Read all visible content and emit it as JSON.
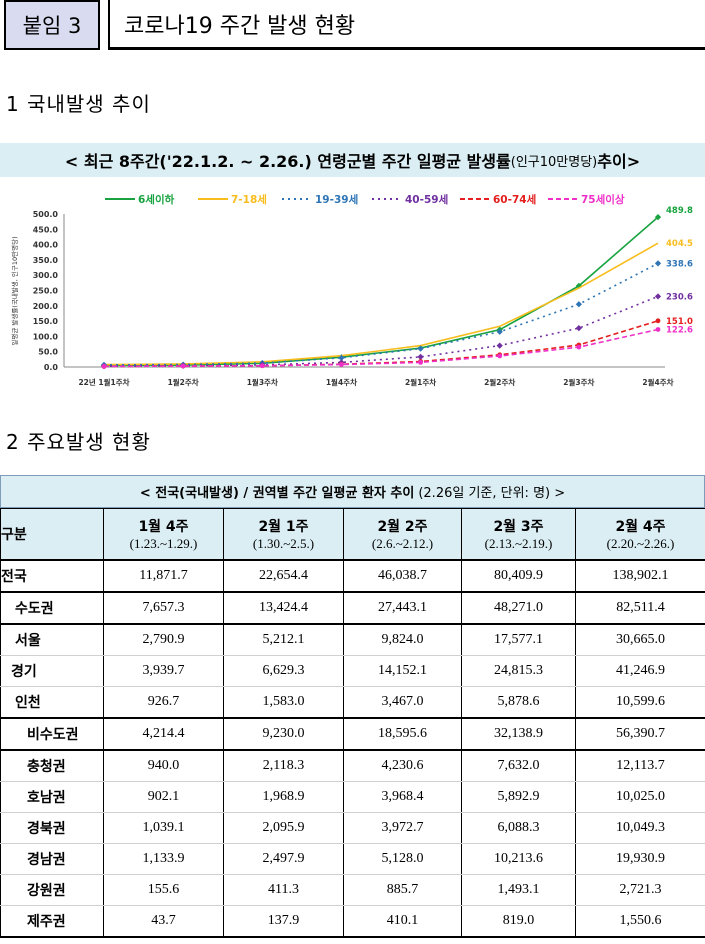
{
  "header": {
    "badge": "붙임 3",
    "title": "코로나19 주간 발생 현황"
  },
  "section1": "1  국내발생 추이",
  "section2": "2  주요발생 현황",
  "chart_title": {
    "main_pre": "< 최근 8주간('22.1.2. ~ 2.26.) 연령군별 주간 일평균 발생률",
    "unit": "(인구10만명당)",
    "main_post": " 추이>"
  },
  "chart_data": {
    "type": "line",
    "title": "최근 8주간('22.1.2. ~ 2.26.) 연령군별 주간 일평균 발생률(인구10만명당) 추이",
    "ylabel": "일평균 발생률(국내발생, 인구10만명당)",
    "ylim": [
      0,
      500
    ],
    "yticks": [
      "500.0",
      "450.0",
      "400.0",
      "350.0",
      "300.0",
      "250.0",
      "200.0",
      "150.0",
      "100.0",
      "50.0",
      "0.0"
    ],
    "categories": [
      "22년 1월1주차",
      "1월2주차",
      "1월3주차",
      "1월4주차",
      "2월1주차",
      "2월2주차",
      "2월3주차",
      "2월4주차"
    ],
    "series": [
      {
        "name": "6세이하",
        "color": "#18a340",
        "dash": "",
        "marker": "diamond",
        "values": [
          5,
          6,
          12,
          32,
          62,
          122,
          265,
          489.8
        ],
        "end_label": "489.8"
      },
      {
        "name": "7-18세",
        "color": "#f8bd1c",
        "dash": "",
        "marker": "none",
        "values": [
          8,
          10,
          17,
          37,
          70,
          133,
          258,
          404.5
        ],
        "end_label": "404.5"
      },
      {
        "name": "19-39세",
        "color": "#2e75b6",
        "dash": "2,4",
        "marker": "diamond",
        "values": [
          7,
          8,
          13,
          30,
          60,
          115,
          205,
          338.6
        ],
        "end_label": "338.6"
      },
      {
        "name": "40-59세",
        "color": "#7030a0",
        "dash": "2,4",
        "marker": "diamond",
        "values": [
          3,
          4,
          7,
          15,
          33,
          70,
          127,
          230.6
        ],
        "end_label": "230.6"
      },
      {
        "name": "60-74세",
        "color": "#e41e1e",
        "dash": "5,3",
        "marker": "circle",
        "values": [
          2,
          3,
          4,
          9,
          18,
          40,
          72,
          151.0
        ],
        "end_label": "151.0"
      },
      {
        "name": "75세이상",
        "color": "#ee30c8",
        "dash": "5,3",
        "marker": "circle",
        "values": [
          2,
          3,
          4,
          8,
          15,
          36,
          65,
          122.6
        ],
        "end_label": "122.6"
      }
    ]
  },
  "table": {
    "caption": "< 전국(국내발생) / 권역별 주간 일평균 환자 추이",
    "note": "(2.26일 기준, 단위: 명) >",
    "corner": "구분",
    "columns": [
      {
        "label": "1월 4주",
        "range": "(1.23.~1.29.)"
      },
      {
        "label": "2월 1주",
        "range": "(1.30.~2.5.)"
      },
      {
        "label": "2월 2주",
        "range": "(2.6.~2.12.)"
      },
      {
        "label": "2월 3주",
        "range": "(2.13.~2.19.)"
      },
      {
        "label": "2월 4주",
        "range": "(2.20.~2.26.)"
      }
    ],
    "rows": [
      {
        "name": "전국",
        "values": [
          "11,871.7",
          "22,654.4",
          "46,038.7",
          "80,409.9",
          "138,902.1"
        ]
      },
      {
        "name": "수도권",
        "values": [
          "7,657.3",
          "13,424.4",
          "27,443.1",
          "48,271.0",
          "82,511.4"
        ]
      },
      {
        "name": "서울",
        "values": [
          "2,790.9",
          "5,212.1",
          "9,824.0",
          "17,577.1",
          "30,665.0"
        ]
      },
      {
        "name": "경기",
        "values": [
          "3,939.7",
          "6,629.3",
          "14,152.1",
          "24,815.3",
          "41,246.9"
        ]
      },
      {
        "name": "인천",
        "values": [
          "926.7",
          "1,583.0",
          "3,467.0",
          "5,878.6",
          "10,599.6"
        ]
      },
      {
        "name": "비수도권",
        "values": [
          "4,214.4",
          "9,230.0",
          "18,595.6",
          "32,138.9",
          "56,390.7"
        ]
      },
      {
        "name": "충청권",
        "values": [
          "940.0",
          "2,118.3",
          "4,230.6",
          "7,632.0",
          "12,113.7"
        ]
      },
      {
        "name": "호남권",
        "values": [
          "902.1",
          "1,968.9",
          "3,968.4",
          "5,892.9",
          "10,025.0"
        ]
      },
      {
        "name": "경북권",
        "values": [
          "1,039.1",
          "2,095.9",
          "3,972.7",
          "6,088.3",
          "10,049.3"
        ]
      },
      {
        "name": "경남권",
        "values": [
          "1,133.9",
          "2,497.9",
          "5,128.0",
          "10,213.6",
          "19,930.9"
        ]
      },
      {
        "name": "강원권",
        "values": [
          "155.6",
          "411.3",
          "885.7",
          "1,493.1",
          "2,721.3"
        ]
      },
      {
        "name": "제주권",
        "values": [
          "43.7",
          "137.9",
          "410.1",
          "819.0",
          "1,550.6"
        ]
      }
    ]
  }
}
